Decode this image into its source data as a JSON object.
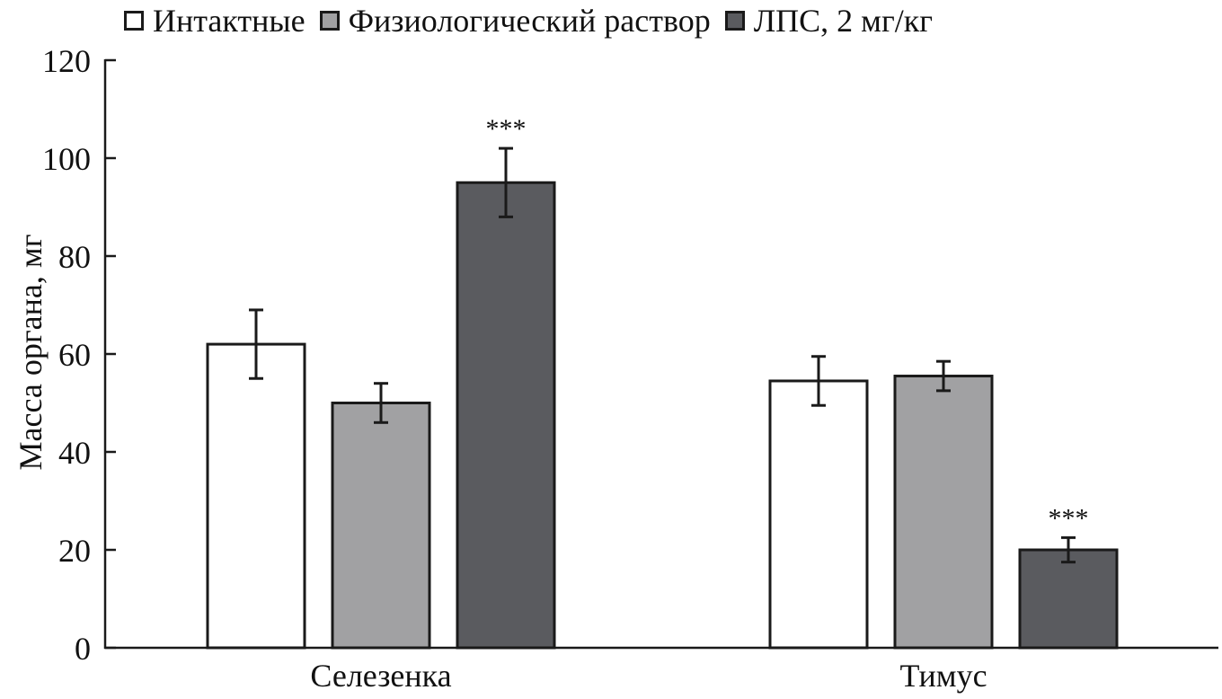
{
  "chart_data": {
    "type": "bar",
    "title": "",
    "ylabel": "Масса органа, мг",
    "xlabel": "",
    "ylim": [
      0,
      120
    ],
    "yticks": [
      0,
      20,
      40,
      60,
      80,
      100,
      120
    ],
    "grid": false,
    "legend_position": "top",
    "categories": [
      "Селезенка",
      "Тимус"
    ],
    "series": [
      {
        "name": "Интактные",
        "color": "#ffffff",
        "values": [
          62,
          54.5
        ],
        "errors": [
          7,
          5
        ],
        "annotations": [
          "",
          ""
        ]
      },
      {
        "name": "Физиологический раствор",
        "color": "#a1a1a3",
        "values": [
          50,
          55.5
        ],
        "errors": [
          4,
          3
        ],
        "annotations": [
          "",
          ""
        ]
      },
      {
        "name": "ЛПС, 2 мг/кг",
        "color": "#5a5b5f",
        "values": [
          95,
          20
        ],
        "errors": [
          7,
          2.5
        ],
        "annotations": [
          "***",
          "***"
        ]
      }
    ]
  }
}
